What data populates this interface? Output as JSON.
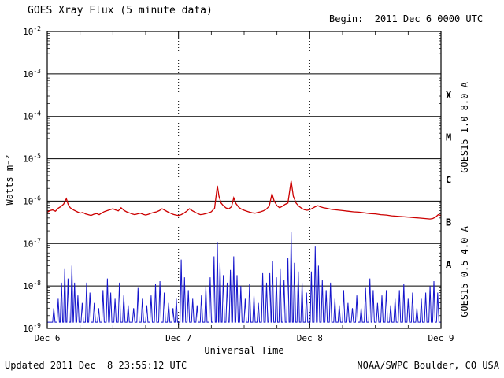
{
  "footer": {
    "updated": "Updated 2011 Dec  8 23:55:12 UTC",
    "credit": "NOAA/SWPC Boulder, CO USA"
  },
  "chart_data": {
    "type": "line",
    "title": "GOES Xray Flux (5 minute data)",
    "begin": "Begin:  2011 Dec 6 0000 UTC",
    "xlabel": "Universal Time",
    "ylabel": "Watts m⁻²",
    "x_unit": "hours since 2011 Dec 6 0000 UTC",
    "xlim_hours": [
      0,
      72
    ],
    "ylim_log10": [
      -9,
      -2
    ],
    "grid": "solid horizontal per decade, dotted vertical per day",
    "legend_position": "rotated labels on right side",
    "x_minor_tick_hours": 6,
    "x_ticks": [
      {
        "t": 0,
        "label": "Dec 6"
      },
      {
        "t": 24,
        "label": "Dec 7"
      },
      {
        "t": 48,
        "label": "Dec 8"
      },
      {
        "t": 72,
        "label": "Dec 9"
      }
    ],
    "y_tick_exponents": [
      -2,
      -3,
      -4,
      -5,
      -6,
      -7,
      -8,
      -9
    ],
    "gridline_exponents": [
      -3,
      -4,
      -5,
      -6,
      -7,
      -8
    ],
    "day_boundary_lines_hours": [
      24,
      48
    ],
    "flare_classes": [
      {
        "label": "X",
        "log10_mid": -3.5
      },
      {
        "label": "M",
        "log10_mid": -4.5
      },
      {
        "label": "C",
        "log10_mid": -5.5
      },
      {
        "label": "B",
        "log10_mid": -6.5
      },
      {
        "label": "A",
        "log10_mid": -7.5
      }
    ],
    "colors": {
      "long_wave": "#cc0000",
      "short_wave": "#1414cc",
      "frame": "#000000",
      "background": "#ffffff"
    },
    "series": [
      {
        "name": "GOES15 1.0-8.0 A",
        "color": "#cc0000",
        "representation": "points [hours, watts_per_m2]",
        "points": [
          [
            0,
            5.5e-07
          ],
          [
            0.5,
            6e-07
          ],
          [
            1,
            6.2e-07
          ],
          [
            1.5,
            5.8e-07
          ],
          [
            2,
            6.8e-07
          ],
          [
            2.5,
            7.5e-07
          ],
          [
            3,
            8.5e-07
          ],
          [
            3.5,
            1.15e-06
          ],
          [
            3.8,
            8.5e-07
          ],
          [
            4.2,
            7e-07
          ],
          [
            4.8,
            6.2e-07
          ],
          [
            5.5,
            5.6e-07
          ],
          [
            6,
            5.2e-07
          ],
          [
            6.5,
            5.4e-07
          ],
          [
            7,
            5e-07
          ],
          [
            7.5,
            4.8e-07
          ],
          [
            8,
            4.6e-07
          ],
          [
            8.5,
            4.9e-07
          ],
          [
            9,
            5.1e-07
          ],
          [
            9.5,
            4.8e-07
          ],
          [
            10,
            5.3e-07
          ],
          [
            10.5,
            5.7e-07
          ],
          [
            11,
            6e-07
          ],
          [
            11.5,
            6.3e-07
          ],
          [
            12,
            6.6e-07
          ],
          [
            12.5,
            6.2e-07
          ],
          [
            13,
            5.9e-07
          ],
          [
            13.5,
            7e-07
          ],
          [
            14,
            6.1e-07
          ],
          [
            14.5,
            5.6e-07
          ],
          [
            15,
            5.3e-07
          ],
          [
            15.5,
            5e-07
          ],
          [
            16,
            4.8e-07
          ],
          [
            16.5,
            5e-07
          ],
          [
            17,
            5.2e-07
          ],
          [
            17.5,
            4.9e-07
          ],
          [
            18,
            4.7e-07
          ],
          [
            18.5,
            4.9e-07
          ],
          [
            19,
            5.2e-07
          ],
          [
            19.5,
            5.4e-07
          ],
          [
            20,
            5.6e-07
          ],
          [
            20.5,
            6e-07
          ],
          [
            21,
            6.6e-07
          ],
          [
            21.5,
            6.1e-07
          ],
          [
            22,
            5.6e-07
          ],
          [
            22.5,
            5.2e-07
          ],
          [
            23,
            4.9e-07
          ],
          [
            23.5,
            4.7e-07
          ],
          [
            24,
            4.6e-07
          ],
          [
            24.5,
            4.8e-07
          ],
          [
            25,
            5.2e-07
          ],
          [
            25.5,
            5.8e-07
          ],
          [
            26,
            6.6e-07
          ],
          [
            26.5,
            6e-07
          ],
          [
            27,
            5.5e-07
          ],
          [
            27.5,
            5.1e-07
          ],
          [
            28,
            4.8e-07
          ],
          [
            28.5,
            4.9e-07
          ],
          [
            29,
            5.1e-07
          ],
          [
            29.5,
            5.3e-07
          ],
          [
            30,
            5.6e-07
          ],
          [
            30.6,
            6.8e-07
          ],
          [
            31.1,
            2.3e-06
          ],
          [
            31.4,
            1.3e-06
          ],
          [
            31.8,
            9e-07
          ],
          [
            32.2,
            7.8e-07
          ],
          [
            32.7,
            6.9e-07
          ],
          [
            33.2,
            6.6e-07
          ],
          [
            33.7,
            7.4e-07
          ],
          [
            34.1,
            1.2e-06
          ],
          [
            34.5,
            8.8e-07
          ],
          [
            35,
            7.2e-07
          ],
          [
            35.5,
            6.5e-07
          ],
          [
            36,
            6.1e-07
          ],
          [
            36.5,
            5.8e-07
          ],
          [
            37,
            5.5e-07
          ],
          [
            37.5,
            5.3e-07
          ],
          [
            38,
            5.2e-07
          ],
          [
            38.5,
            5.4e-07
          ],
          [
            39,
            5.6e-07
          ],
          [
            39.5,
            5.9e-07
          ],
          [
            40,
            6.4e-07
          ],
          [
            40.6,
            7.6e-07
          ],
          [
            41.1,
            1.5e-06
          ],
          [
            41.5,
            1e-06
          ],
          [
            42,
            7.8e-07
          ],
          [
            42.5,
            7e-07
          ],
          [
            43,
            7.6e-07
          ],
          [
            43.5,
            8.4e-07
          ],
          [
            44,
            9e-07
          ],
          [
            44.6,
            3e-06
          ],
          [
            45,
            1.3e-06
          ],
          [
            45.5,
            9e-07
          ],
          [
            46,
            7.6e-07
          ],
          [
            46.5,
            6.8e-07
          ],
          [
            47,
            6.3e-07
          ],
          [
            47.5,
            6.1e-07
          ],
          [
            48,
            6.3e-07
          ],
          [
            48.5,
            6.8e-07
          ],
          [
            49,
            7.4e-07
          ],
          [
            49.5,
            7.8e-07
          ],
          [
            50,
            7.3e-07
          ],
          [
            50.5,
            7e-07
          ],
          [
            51,
            6.8e-07
          ],
          [
            51.5,
            6.6e-07
          ],
          [
            52,
            6.4e-07
          ],
          [
            53,
            6.2e-07
          ],
          [
            54,
            6e-07
          ],
          [
            55,
            5.8e-07
          ],
          [
            56,
            5.6e-07
          ],
          [
            57,
            5.5e-07
          ],
          [
            58,
            5.3e-07
          ],
          [
            59,
            5.1e-07
          ],
          [
            60,
            5e-07
          ],
          [
            61,
            4.8e-07
          ],
          [
            62,
            4.7e-07
          ],
          [
            63,
            4.5e-07
          ],
          [
            64,
            4.4e-07
          ],
          [
            65,
            4.3e-07
          ],
          [
            66,
            4.2e-07
          ],
          [
            67,
            4.1e-07
          ],
          [
            68,
            4e-07
          ],
          [
            69,
            3.9e-07
          ],
          [
            70,
            3.8e-07
          ],
          [
            70.5,
            3.9e-07
          ],
          [
            71,
            4.2e-07
          ],
          [
            71.5,
            4.8e-07
          ],
          [
            72,
            4.6e-07
          ]
        ]
      },
      {
        "name": "GOES15 0.5-4.0 A",
        "color": "#1414cc",
        "representation": "baseline plus spikes [hours, peak_watts_per_m2]",
        "baseline": 1.4e-09,
        "spike_half_width_hours": 0.22,
        "spikes": [
          [
            1.2,
            3e-09
          ],
          [
            2,
            5e-09
          ],
          [
            2.6,
            1.2e-08
          ],
          [
            3.2,
            2.6e-08
          ],
          [
            3.8,
            1.5e-08
          ],
          [
            4.5,
            3e-08
          ],
          [
            5,
            1.2e-08
          ],
          [
            5.6,
            6e-09
          ],
          [
            6.4,
            4e-09
          ],
          [
            7.2,
            1.2e-08
          ],
          [
            7.8,
            7e-09
          ],
          [
            8.6,
            4e-09
          ],
          [
            9.4,
            3e-09
          ],
          [
            10.2,
            8e-09
          ],
          [
            11,
            1.5e-08
          ],
          [
            11.6,
            7e-09
          ],
          [
            12.4,
            5e-09
          ],
          [
            13.2,
            1.2e-08
          ],
          [
            14,
            6e-09
          ],
          [
            14.8,
            3.5e-09
          ],
          [
            15.8,
            3e-09
          ],
          [
            16.6,
            9e-09
          ],
          [
            17.4,
            5e-09
          ],
          [
            18.2,
            3.5e-09
          ],
          [
            19,
            6e-09
          ],
          [
            19.8,
            1.1e-08
          ],
          [
            20.6,
            1.3e-08
          ],
          [
            21.4,
            7e-09
          ],
          [
            22.2,
            4e-09
          ],
          [
            23,
            3e-09
          ],
          [
            23.6,
            5e-09
          ],
          [
            24.5,
            4.2e-08
          ],
          [
            25.1,
            1.6e-08
          ],
          [
            25.8,
            8e-09
          ],
          [
            26.6,
            5e-09
          ],
          [
            27.4,
            3.5e-09
          ],
          [
            28.2,
            6e-09
          ],
          [
            29,
            1e-08
          ],
          [
            29.8,
            1.6e-08
          ],
          [
            30.5,
            5e-08
          ],
          [
            31.1,
            1.1e-07
          ],
          [
            31.6,
            3.5e-08
          ],
          [
            32.2,
            1.8e-08
          ],
          [
            32.9,
            1.2e-08
          ],
          [
            33.5,
            2.4e-08
          ],
          [
            34.1,
            5e-08
          ],
          [
            34.7,
            1.8e-08
          ],
          [
            35.4,
            1e-08
          ],
          [
            36.2,
            5e-09
          ],
          [
            37,
            1.1e-08
          ],
          [
            37.8,
            6e-09
          ],
          [
            38.6,
            4e-09
          ],
          [
            39.4,
            2e-08
          ],
          [
            40.1,
            1.2e-08
          ],
          [
            40.7,
            2e-08
          ],
          [
            41.2,
            3.8e-08
          ],
          [
            41.9,
            1.6e-08
          ],
          [
            42.6,
            2.6e-08
          ],
          [
            43.3,
            1.4e-08
          ],
          [
            44,
            4.5e-08
          ],
          [
            44.6,
            1.9e-07
          ],
          [
            45.2,
            3.5e-08
          ],
          [
            45.9,
            2.2e-08
          ],
          [
            46.6,
            1.2e-08
          ],
          [
            47.4,
            7e-09
          ],
          [
            48.3,
            2.2e-08
          ],
          [
            49,
            8.5e-08
          ],
          [
            49.6,
            3e-08
          ],
          [
            50.3,
            1.4e-08
          ],
          [
            51,
            8e-09
          ],
          [
            51.8,
            1.2e-08
          ],
          [
            52.6,
            5e-09
          ],
          [
            53.4,
            3.5e-09
          ],
          [
            54.2,
            8e-09
          ],
          [
            55,
            4e-09
          ],
          [
            55.8,
            3e-09
          ],
          [
            56.6,
            6e-09
          ],
          [
            57.4,
            3e-09
          ],
          [
            58.2,
            9e-09
          ],
          [
            59,
            1.5e-08
          ],
          [
            59.6,
            8e-09
          ],
          [
            60.4,
            4e-09
          ],
          [
            61.2,
            6e-09
          ],
          [
            62,
            8e-09
          ],
          [
            62.8,
            3.5e-09
          ],
          [
            63.6,
            5e-09
          ],
          [
            64.4,
            8e-09
          ],
          [
            65.2,
            1.1e-08
          ],
          [
            66,
            5e-09
          ],
          [
            66.8,
            7e-09
          ],
          [
            67.6,
            3e-09
          ],
          [
            68.4,
            5e-09
          ],
          [
            69.2,
            7e-09
          ],
          [
            70,
            1e-08
          ],
          [
            70.7,
            1.3e-08
          ],
          [
            71.4,
            7e-09
          ]
        ]
      }
    ]
  }
}
